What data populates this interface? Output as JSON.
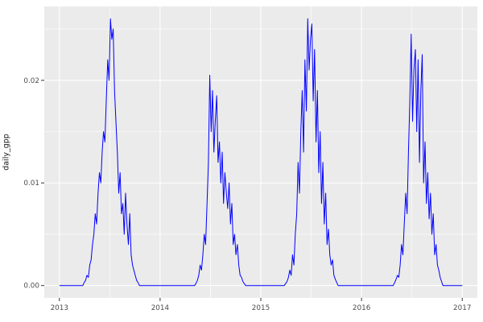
{
  "chart_data": {
    "type": "line",
    "title": "",
    "xlabel": "",
    "ylabel": "daily_gpp",
    "xlim": [
      2012.85,
      2017.15
    ],
    "ylim": [
      -0.0012,
      0.0272
    ],
    "x_ticks": [
      2013,
      2014,
      2015,
      2016,
      2017
    ],
    "x_tick_labels": [
      "2013",
      "2014",
      "2015",
      "2016",
      "2017"
    ],
    "x_minor_ticks": [
      2013.5,
      2014.5,
      2015.5,
      2016.5
    ],
    "y_ticks": [
      0,
      0.01,
      0.02
    ],
    "y_tick_labels": [
      "0.00",
      "0.01",
      "0.02"
    ],
    "y_minor_ticks": [
      0.005,
      0.015,
      0.025
    ],
    "grid": "on",
    "legend": "none",
    "panel_bg": "#EBEBEB",
    "grid_color": "#FFFFFF",
    "tick_color": "#333333",
    "tick_label_color": "#4D4D4D",
    "line_color": "#0000FF",
    "series": {
      "name": "daily_gpp",
      "start_year": 2013,
      "step_days": 5,
      "values": [
        0,
        0,
        0,
        0,
        0,
        0,
        0,
        0,
        0,
        0,
        0,
        0,
        0,
        0,
        0,
        0,
        0,
        0,
        0.0003,
        0.0005,
        0.001,
        0.0008,
        0.002,
        0.0025,
        0.004,
        0.005,
        0.007,
        0.006,
        0.009,
        0.011,
        0.01,
        0.013,
        0.015,
        0.014,
        0.018,
        0.022,
        0.02,
        0.026,
        0.024,
        0.025,
        0.019,
        0.016,
        0.013,
        0.009,
        0.011,
        0.007,
        0.008,
        0.005,
        0.009,
        0.006,
        0.004,
        0.007,
        0.003,
        0.002,
        0.0015,
        0.001,
        0.0005,
        0.0003,
        0,
        0,
        0,
        0,
        0,
        0,
        0,
        0,
        0,
        0,
        0,
        0,
        0,
        0,
        0,
        0,
        0,
        0,
        0,
        0,
        0,
        0,
        0,
        0,
        0,
        0,
        0,
        0,
        0,
        0,
        0,
        0,
        0,
        0,
        0,
        0,
        0,
        0,
        0,
        0,
        0,
        0.0002,
        0.0005,
        0.001,
        0.002,
        0.0015,
        0.003,
        0.005,
        0.004,
        0.008,
        0.012,
        0.0205,
        0.015,
        0.019,
        0.013,
        0.016,
        0.0185,
        0.012,
        0.014,
        0.01,
        0.013,
        0.008,
        0.011,
        0.009,
        0.0075,
        0.01,
        0.006,
        0.008,
        0.004,
        0.005,
        0.003,
        0.004,
        0.002,
        0.001,
        0.0008,
        0.0004,
        0.0002,
        0,
        0,
        0,
        0,
        0,
        0,
        0,
        0,
        0,
        0,
        0,
        0,
        0,
        0,
        0,
        0,
        0,
        0,
        0,
        0,
        0,
        0,
        0,
        0,
        0,
        0,
        0,
        0,
        0,
        0.0002,
        0.0004,
        0.0008,
        0.0015,
        0.001,
        0.003,
        0.002,
        0.005,
        0.007,
        0.012,
        0.009,
        0.015,
        0.019,
        0.013,
        0.022,
        0.017,
        0.026,
        0.021,
        0.024,
        0.0255,
        0.018,
        0.023,
        0.014,
        0.019,
        0.011,
        0.015,
        0.008,
        0.012,
        0.006,
        0.009,
        0.004,
        0.0055,
        0.003,
        0.002,
        0.0025,
        0.001,
        0.0006,
        0.0003,
        0,
        0,
        0,
        0,
        0,
        0,
        0,
        0,
        0,
        0,
        0,
        0,
        0,
        0,
        0,
        0,
        0,
        0,
        0,
        0,
        0,
        0,
        0,
        0,
        0,
        0,
        0,
        0,
        0,
        0,
        0,
        0,
        0,
        0,
        0,
        0,
        0,
        0,
        0,
        0,
        0,
        0.0003,
        0.0006,
        0.001,
        0.0008,
        0.002,
        0.004,
        0.003,
        0.006,
        0.009,
        0.007,
        0.013,
        0.018,
        0.0245,
        0.016,
        0.021,
        0.023,
        0.015,
        0.022,
        0.012,
        0.019,
        0.0225,
        0.01,
        0.014,
        0.008,
        0.011,
        0.0065,
        0.009,
        0.005,
        0.007,
        0.003,
        0.004,
        0.002,
        0.0015,
        0.0008,
        0.0004,
        0,
        0,
        0,
        0,
        0,
        0,
        0,
        0,
        0,
        0,
        0,
        0,
        0,
        0,
        0
      ]
    }
  }
}
